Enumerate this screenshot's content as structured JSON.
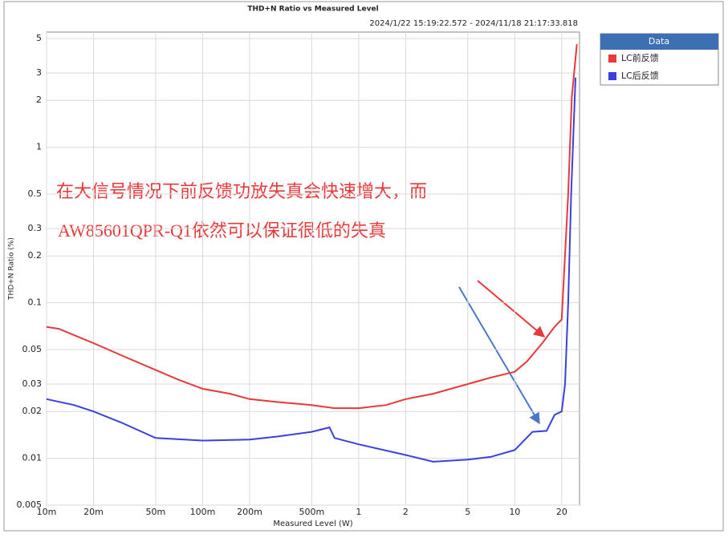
{
  "chart_data": {
    "type": "line",
    "title": "THD+N Ratio vs Measured Level",
    "subtitle": "2024/1/22 15:19:22.572 - 2024/11/18 21:17:33.818",
    "x_label": "Measured Level (W)",
    "y_label": "THD+N Ratio (%)",
    "legend_title": "Data",
    "annotations": [
      "在大信号情况下前反馈功放失真会快速增大，而",
      "AW85601QPR-Q1依然可以保证很低的失真"
    ],
    "log_x": true,
    "log_y": true,
    "grid": true,
    "xlim": [
      0.01,
      26
    ],
    "ylim": [
      0.005,
      5.5
    ],
    "xticks": [
      {
        "value": 0.01,
        "label": "10m"
      },
      {
        "value": 0.02,
        "label": "20m"
      },
      {
        "value": 0.05,
        "label": "50m"
      },
      {
        "value": 0.1,
        "label": "100m"
      },
      {
        "value": 0.2,
        "label": "200m"
      },
      {
        "value": 0.5,
        "label": "500m"
      },
      1,
      2,
      5,
      10,
      20
    ],
    "yticks": [
      5,
      3,
      2,
      1,
      0.5,
      0.3,
      0.2,
      0.1,
      0.05,
      0.03,
      0.02,
      0.01,
      0.005
    ],
    "series": [
      {
        "name": "LC前反馈",
        "color": "#e8383a",
        "x": [
          0.01,
          0.012,
          0.015,
          0.02,
          0.03,
          0.05,
          0.07,
          0.1,
          0.15,
          0.2,
          0.3,
          0.5,
          0.7,
          1,
          1.5,
          2,
          3,
          5,
          7,
          10,
          12,
          15,
          18,
          20,
          22,
          23.2,
          25
        ],
        "values": [
          0.07,
          0.068,
          0.062,
          0.055,
          0.046,
          0.037,
          0.032,
          0.028,
          0.026,
          0.024,
          0.023,
          0.022,
          0.021,
          0.021,
          0.022,
          0.024,
          0.026,
          0.03,
          0.033,
          0.036,
          0.042,
          0.055,
          0.07,
          0.078,
          0.5,
          2.1,
          4.6
        ]
      },
      {
        "name": "LC后反馈",
        "color": "#3b3fe0",
        "x": [
          0.01,
          0.015,
          0.02,
          0.03,
          0.05,
          0.1,
          0.2,
          0.3,
          0.5,
          0.65,
          0.7,
          1,
          2,
          3,
          5,
          7,
          10,
          13,
          16,
          18,
          20,
          21,
          22,
          23,
          24.5
        ],
        "values": [
          0.024,
          0.022,
          0.02,
          0.017,
          0.0135,
          0.013,
          0.0132,
          0.0138,
          0.0148,
          0.0158,
          0.0135,
          0.0123,
          0.0105,
          0.0095,
          0.0098,
          0.0102,
          0.0113,
          0.0148,
          0.015,
          0.019,
          0.02,
          0.03,
          0.1,
          0.5,
          2.8
        ]
      }
    ]
  }
}
